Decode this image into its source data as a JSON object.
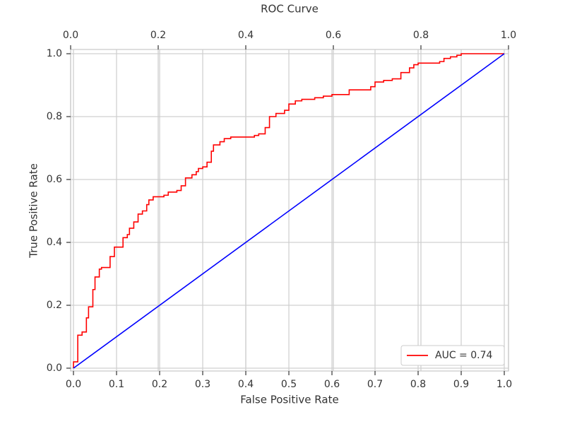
{
  "chart_data": {
    "type": "line",
    "title": "ROC Curve",
    "xlabel": "False Positive Rate",
    "ylabel": "True Positive Rate",
    "xlim": [
      -0.0066,
      1.0098
    ],
    "ylim": [
      -0.009,
      1.0135
    ],
    "xticks": [
      {
        "value": 0,
        "label": "0.0"
      },
      0.1,
      0.2,
      0.3,
      0.4,
      0.5,
      0.6,
      0.7,
      0.8,
      0.9,
      {
        "value": 1,
        "label": "1.0"
      }
    ],
    "yticks": [
      {
        "value": 0,
        "label": "0.0"
      },
      0.2,
      0.4,
      0.6,
      0.8,
      {
        "value": 1,
        "label": "1.0"
      }
    ],
    "x2lim": [
      0,
      1
    ],
    "x2ticks": [
      {
        "value": 0,
        "label": "0.0"
      },
      0.2,
      0.4,
      0.6,
      0.8,
      {
        "value": 1,
        "label": "1.0"
      }
    ],
    "grid": true,
    "legend": "lower right",
    "series": [
      {
        "name": "AUC = 0.74",
        "color": "#ff0000",
        "x": [
          0,
          0,
          0.01,
          0.01,
          0.02,
          0.02,
          0.03,
          0.03,
          0.035,
          0.035,
          0.045,
          0.045,
          0.05,
          0.05,
          0.06,
          0.06,
          0.065,
          0.065,
          0.085,
          0.085,
          0.095,
          0.095,
          0.115,
          0.115,
          0.125,
          0.125,
          0.13,
          0.13,
          0.14,
          0.14,
          0.15,
          0.15,
          0.16,
          0.16,
          0.17,
          0.17,
          0.175,
          0.175,
          0.185,
          0.185,
          0.21,
          0.21,
          0.22,
          0.22,
          0.24,
          0.24,
          0.25,
          0.25,
          0.26,
          0.26,
          0.275,
          0.275,
          0.285,
          0.285,
          0.29,
          0.29,
          0.3,
          0.3,
          0.31,
          0.31,
          0.32,
          0.32,
          0.325,
          0.325,
          0.34,
          0.34,
          0.35,
          0.35,
          0.365,
          0.365,
          0.42,
          0.42,
          0.43,
          0.43,
          0.445,
          0.445,
          0.455,
          0.455,
          0.47,
          0.47,
          0.49,
          0.49,
          0.5,
          0.5,
          0.515,
          0.515,
          0.53,
          0.53,
          0.56,
          0.56,
          0.58,
          0.58,
          0.6,
          0.6,
          0.64,
          0.64,
          0.69,
          0.69,
          0.7,
          0.7,
          0.72,
          0.72,
          0.74,
          0.74,
          0.76,
          0.76,
          0.78,
          0.78,
          0.79,
          0.79,
          0.8,
          0.8,
          0.85,
          0.85,
          0.86,
          0.86,
          0.875,
          0.875,
          0.89,
          0.89,
          0.9,
          0.9,
          1
        ],
        "values": [
          0,
          0.02,
          0.02,
          0.105,
          0.105,
          0.115,
          0.115,
          0.16,
          0.16,
          0.195,
          0.195,
          0.25,
          0.25,
          0.29,
          0.29,
          0.315,
          0.315,
          0.32,
          0.32,
          0.355,
          0.355,
          0.385,
          0.385,
          0.415,
          0.415,
          0.425,
          0.425,
          0.445,
          0.445,
          0.465,
          0.465,
          0.49,
          0.49,
          0.5,
          0.5,
          0.52,
          0.52,
          0.535,
          0.535,
          0.545,
          0.545,
          0.55,
          0.55,
          0.56,
          0.56,
          0.565,
          0.565,
          0.58,
          0.58,
          0.605,
          0.605,
          0.615,
          0.615,
          0.625,
          0.625,
          0.635,
          0.635,
          0.64,
          0.64,
          0.655,
          0.655,
          0.69,
          0.69,
          0.71,
          0.71,
          0.72,
          0.72,
          0.73,
          0.73,
          0.735,
          0.735,
          0.74,
          0.74,
          0.745,
          0.745,
          0.765,
          0.765,
          0.8,
          0.8,
          0.81,
          0.81,
          0.82,
          0.82,
          0.84,
          0.84,
          0.85,
          0.85,
          0.855,
          0.855,
          0.86,
          0.86,
          0.865,
          0.865,
          0.87,
          0.87,
          0.885,
          0.885,
          0.895,
          0.895,
          0.91,
          0.91,
          0.915,
          0.915,
          0.92,
          0.92,
          0.94,
          0.94,
          0.955,
          0.955,
          0.965,
          0.965,
          0.97,
          0.97,
          0.975,
          0.975,
          0.985,
          0.985,
          0.99,
          0.99,
          0.995,
          0.995,
          1,
          1
        ]
      },
      {
        "color": "#0000ff",
        "x": [
          0,
          1
        ],
        "values": [
          0,
          1
        ]
      }
    ]
  }
}
